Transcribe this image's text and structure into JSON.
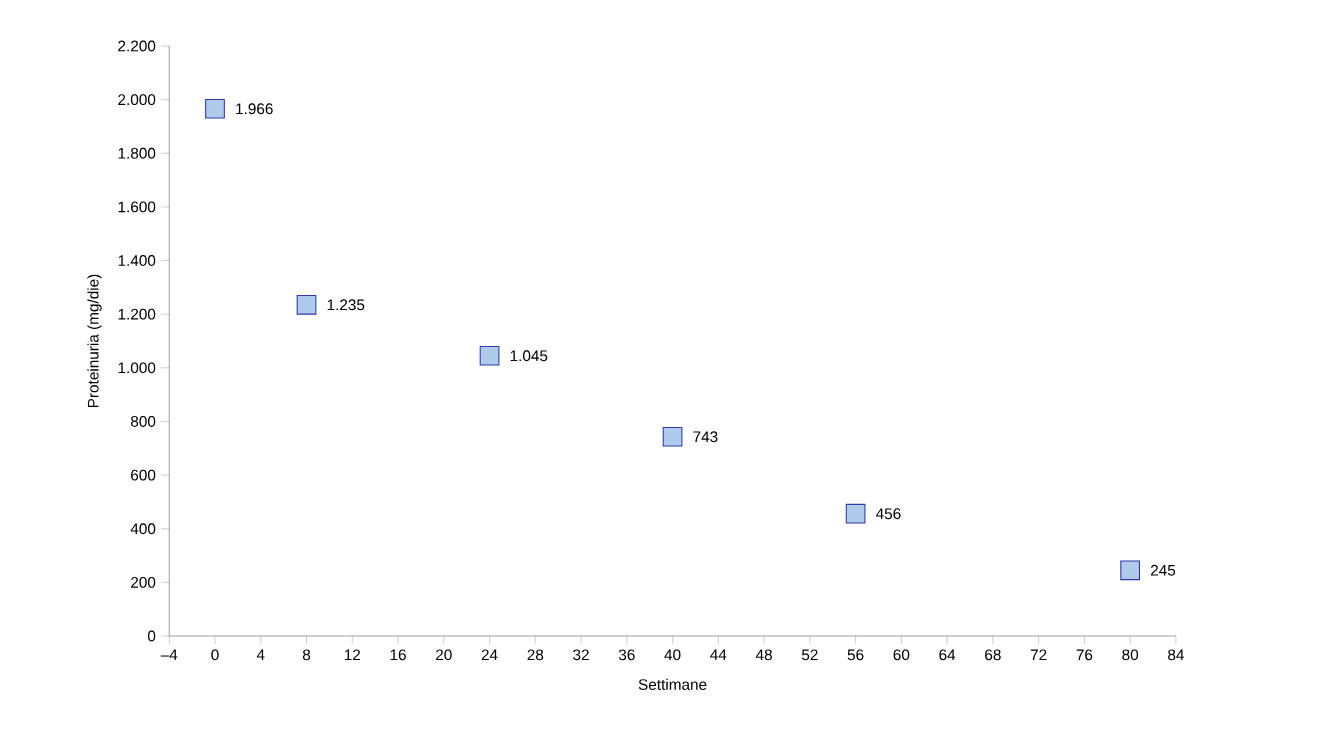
{
  "chart_data": {
    "type": "scatter",
    "xlabel": "Settimane",
    "ylabel": "Proteinuria (mg/die)",
    "x": [
      0,
      8,
      24,
      40,
      56,
      80
    ],
    "values": [
      1966,
      1235,
      1045,
      743,
      456,
      245
    ],
    "value_labels": [
      "1.966",
      "1.235",
      "1.045",
      "743",
      "456",
      "245"
    ],
    "color": "#aecbeb",
    "marker": "square",
    "grid": false,
    "xlim": [
      -4,
      84
    ],
    "xticks": [
      {
        "value": -4,
        "label": "–4"
      },
      0,
      4,
      8,
      12,
      16,
      20,
      24,
      28,
      32,
      36,
      40,
      44,
      48,
      52,
      56,
      60,
      64,
      68,
      72,
      76,
      80,
      84
    ],
    "ylim": [
      0,
      2200
    ],
    "yticks": [
      0,
      200,
      400,
      600,
      800,
      {
        "value": 1000,
        "label": "1.000"
      },
      {
        "value": 1200,
        "label": "1.200"
      },
      {
        "value": 1400,
        "label": "1.400"
      },
      {
        "value": 1600,
        "label": "1.600"
      },
      {
        "value": 1800,
        "label": "1.800"
      },
      {
        "value": 2000,
        "label": "2.000"
      },
      {
        "value": 2200,
        "label": "2.200"
      }
    ]
  }
}
